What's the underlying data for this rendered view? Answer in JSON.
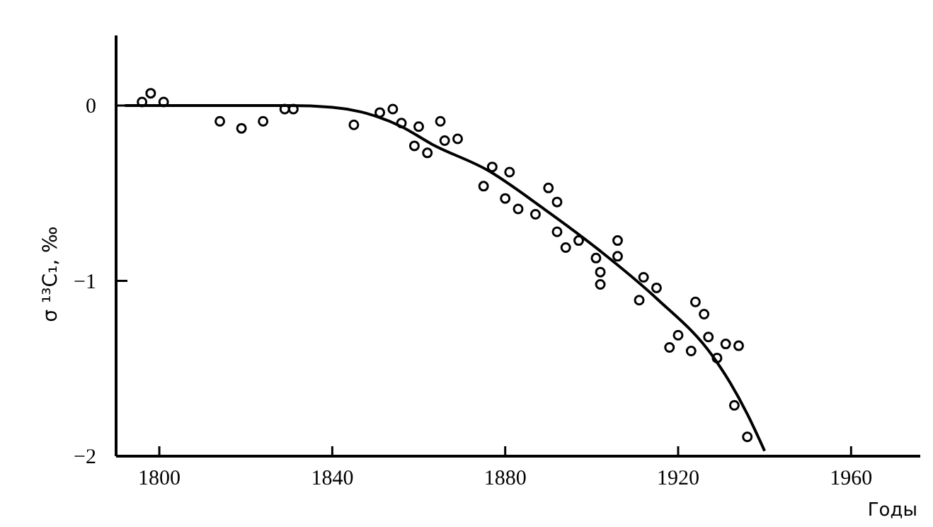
{
  "chart_data": {
    "type": "scatter",
    "xlabel": "Годы",
    "ylabel": "σ ¹³C₁, ‰",
    "xlim": [
      1790,
      1976
    ],
    "ylim": [
      -2,
      0.4
    ],
    "xticks": [
      1800,
      1840,
      1880,
      1920,
      1960
    ],
    "yticks": [
      -2,
      -1,
      0
    ],
    "grid": false,
    "marker": "circle",
    "series": [
      {
        "color": "#000000",
        "x": [
          1796,
          1798,
          1801,
          1814,
          1819,
          1824,
          1829,
          1831,
          1845,
          1851,
          1854,
          1856,
          1859,
          1860,
          1862,
          1865,
          1866,
          1869,
          1875,
          1877,
          1880,
          1881,
          1883,
          1887,
          1890,
          1892,
          1892,
          1894,
          1897,
          1901,
          1902,
          1902,
          1906,
          1906,
          1911,
          1912,
          1915,
          1918,
          1920,
          1923,
          1924,
          1926,
          1927,
          1929,
          1931,
          1933,
          1934,
          1936
        ],
        "values": [
          0.02,
          0.07,
          0.02,
          -0.09,
          -0.13,
          -0.09,
          -0.02,
          -0.02,
          -0.11,
          -0.04,
          -0.02,
          -0.1,
          -0.23,
          -0.12,
          -0.27,
          -0.09,
          -0.2,
          -0.19,
          -0.46,
          -0.35,
          -0.53,
          -0.38,
          -0.59,
          -0.62,
          -0.47,
          -0.55,
          -0.72,
          -0.81,
          -0.77,
          -0.87,
          -0.95,
          -1.02,
          -0.86,
          -0.77,
          -1.11,
          -0.98,
          -1.04,
          -1.38,
          -1.31,
          -1.4,
          -1.12,
          -1.19,
          -1.32,
          -1.44,
          -1.36,
          -1.71,
          -1.37,
          -1.89
        ]
      },
      {
        "type": "line",
        "color": "#000000",
        "marker": "none",
        "line_style": "solid",
        "x": [
          1792,
          1810,
          1830,
          1840,
          1850,
          1856,
          1863,
          1876,
          1889,
          1902,
          1915,
          1928,
          1932,
          1936,
          1940
        ],
        "values": [
          0,
          0,
          0,
          -0.01,
          -0.06,
          -0.12,
          -0.22,
          -0.37,
          -0.59,
          -0.83,
          -1.1,
          -1.43,
          -1.58,
          -1.76,
          -1.97
        ]
      }
    ]
  }
}
